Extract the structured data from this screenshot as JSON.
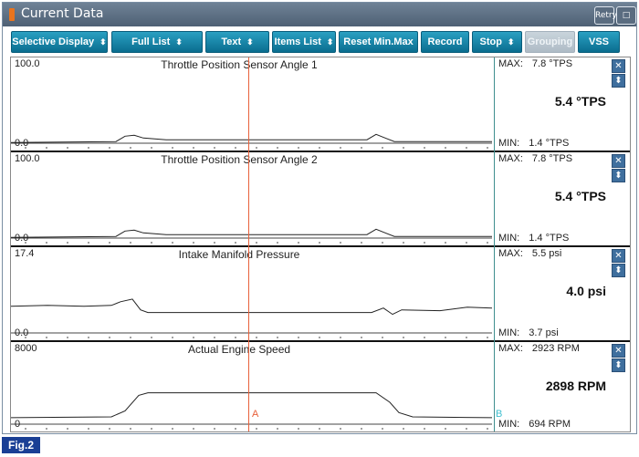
{
  "window": {
    "title": "Current Data",
    "retry_label": "Retry",
    "restore_label": "□"
  },
  "toolbar": {
    "selective_display": "Selective Display",
    "full_list": "Full List",
    "text": "Text",
    "items_list": "Items List",
    "reset_minmax": "Reset Min.Max",
    "record": "Record",
    "stop": "Stop",
    "grouping": "Grouping",
    "vss": "VSS",
    "dropdown_glyph": "⬍"
  },
  "panels": [
    {
      "title": "Throttle Position Sensor Angle 1",
      "ymax": "100.0",
      "ymin": "0.0",
      "max_label": "MAX:",
      "max_value": "7.8 °TPS",
      "min_label": "MIN:",
      "min_value": "1.4 °TPS",
      "current": "5.4 °TPS",
      "series": [
        [
          0,
          95
        ],
        [
          115,
          94
        ],
        [
          125,
          88
        ],
        [
          135,
          87
        ],
        [
          145,
          90
        ],
        [
          170,
          92
        ],
        [
          300,
          92
        ],
        [
          390,
          92
        ],
        [
          400,
          86
        ],
        [
          410,
          90
        ],
        [
          420,
          94
        ],
        [
          527,
          94
        ]
      ]
    },
    {
      "title": "Throttle Position Sensor Angle 2",
      "ymax": "100.0",
      "ymin": "0.0",
      "max_label": "MAX:",
      "max_value": "7.8 °TPS",
      "min_label": "MIN:",
      "min_value": "1.4 °TPS",
      "current": "5.4 °TPS",
      "series": [
        [
          0,
          95
        ],
        [
          115,
          94
        ],
        [
          125,
          88
        ],
        [
          135,
          87
        ],
        [
          145,
          90
        ],
        [
          170,
          92
        ],
        [
          300,
          92
        ],
        [
          390,
          92
        ],
        [
          400,
          86
        ],
        [
          410,
          90
        ],
        [
          420,
          94
        ],
        [
          527,
          94
        ]
      ]
    },
    {
      "title": "Intake Manifold Pressure",
      "ymax": "17.4",
      "ymin": "0.0",
      "max_label": "MAX:",
      "max_value": "5.5 psi",
      "min_label": "MIN:",
      "min_value": "3.7 psi",
      "current": "4.0 psi",
      "series": [
        [
          0,
          66
        ],
        [
          40,
          65
        ],
        [
          80,
          66
        ],
        [
          110,
          65
        ],
        [
          120,
          61
        ],
        [
          133,
          58
        ],
        [
          142,
          70
        ],
        [
          150,
          73
        ],
        [
          200,
          73
        ],
        [
          260,
          73
        ],
        [
          300,
          73
        ],
        [
          395,
          73
        ],
        [
          408,
          68
        ],
        [
          418,
          75
        ],
        [
          428,
          70
        ],
        [
          470,
          71
        ],
        [
          500,
          67
        ],
        [
          527,
          68
        ]
      ]
    },
    {
      "title": "Actual Engine Speed",
      "ymax": "8000",
      "ymin": "0",
      "max_label": "MAX:",
      "max_value": "2923 RPM",
      "min_label": "MIN:",
      "min_value": "694 RPM",
      "current": "2898 RPM",
      "series": [
        [
          0,
          88
        ],
        [
          110,
          87
        ],
        [
          125,
          80
        ],
        [
          140,
          62
        ],
        [
          150,
          59
        ],
        [
          200,
          59
        ],
        [
          300,
          59
        ],
        [
          400,
          59
        ],
        [
          415,
          70
        ],
        [
          425,
          82
        ],
        [
          440,
          87
        ],
        [
          527,
          88
        ]
      ]
    }
  ],
  "markers": {
    "a": "A",
    "b": "B"
  },
  "footer": {
    "fig_label": "Fig.2"
  },
  "colors": {
    "accent": "#0a6d8f",
    "cursor_a": "#e8603a",
    "cursor_b": "#3f8f8f"
  },
  "icons": {
    "close": "✕",
    "scale": "⬍"
  }
}
